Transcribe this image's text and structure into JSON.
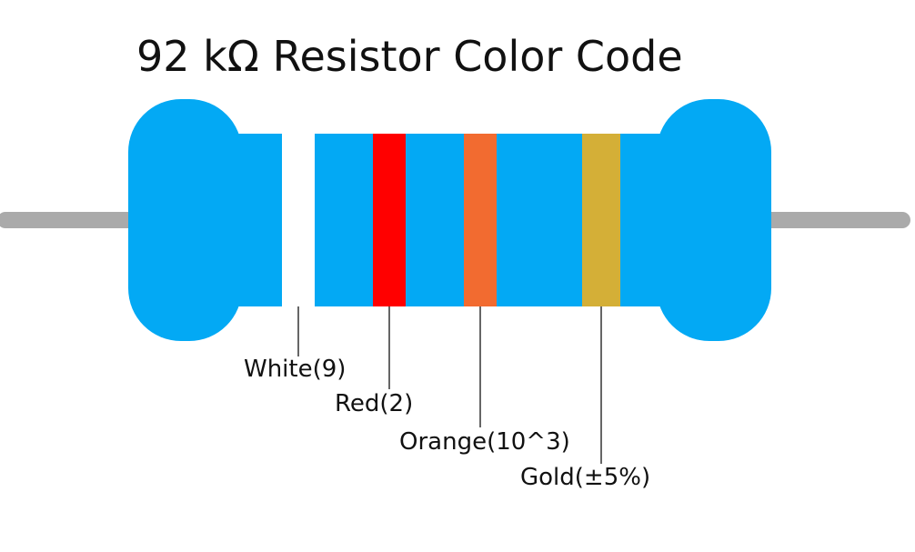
{
  "title": "92 kΩ Resistor Color Code",
  "colors": {
    "body": "#03A9F4",
    "lead": "#AAAAAA",
    "leader_line": "#000000"
  },
  "bands": [
    {
      "name": "White",
      "label": "White(9)",
      "color": "#FFFFFF"
    },
    {
      "name": "Red",
      "label": "Red(2)",
      "color": "#FF0000"
    },
    {
      "name": "Orange",
      "label": "Orange(10^3)",
      "color": "#F26B30"
    },
    {
      "name": "Gold",
      "label": "Gold(±5%)",
      "color": "#D4AF37"
    }
  ]
}
